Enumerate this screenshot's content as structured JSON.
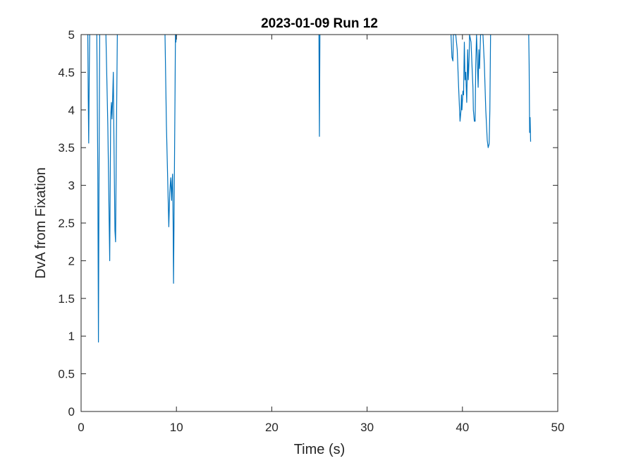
{
  "chart_data": {
    "type": "line",
    "title": "2023-01-09 Run 12",
    "xlabel": "Time (s)",
    "ylabel": "DvA from Fixation",
    "xlim": [
      0,
      50
    ],
    "ylim": [
      0,
      5
    ],
    "xticks": [
      0,
      10,
      20,
      30,
      40,
      50
    ],
    "yticks": [
      0,
      0.5,
      1,
      1.5,
      2,
      2.5,
      3,
      3.5,
      4,
      4.5,
      5
    ],
    "grid": false,
    "legend": "none",
    "line_color": "#0072BD",
    "series": [
      {
        "segments": [
          [
            [
              0.7,
              5.0
            ],
            [
              0.75,
              4.2
            ],
            [
              0.8,
              3.56
            ],
            [
              0.85,
              4.4
            ],
            [
              0.9,
              5.0
            ]
          ],
          [
            [
              1.65,
              5.0
            ],
            [
              1.75,
              3.2
            ],
            [
              1.82,
              0.92
            ],
            [
              1.87,
              2.8
            ],
            [
              1.95,
              5.0
            ]
          ],
          [
            [
              2.6,
              5.0
            ],
            [
              2.8,
              3.8
            ],
            [
              3.0,
              2.0
            ],
            [
              3.1,
              3.9
            ],
            [
              3.18,
              4.1
            ],
            [
              3.24,
              3.88
            ],
            [
              3.3,
              4.1
            ],
            [
              3.38,
              4.5
            ],
            [
              3.45,
              3.6
            ],
            [
              3.55,
              2.4
            ],
            [
              3.62,
              2.25
            ],
            [
              3.7,
              3.6
            ],
            [
              3.8,
              5.0
            ]
          ],
          [
            [
              8.8,
              5.0
            ],
            [
              8.95,
              3.8
            ],
            [
              9.1,
              3.0
            ],
            [
              9.2,
              2.45
            ],
            [
              9.3,
              2.9
            ],
            [
              9.4,
              3.1
            ],
            [
              9.5,
              2.8
            ],
            [
              9.55,
              3.05
            ],
            [
              9.6,
              3.15
            ],
            [
              9.65,
              2.5
            ],
            [
              9.7,
              1.7
            ],
            [
              9.78,
              3.0
            ],
            [
              9.85,
              4.2
            ],
            [
              9.9,
              5.0
            ],
            [
              9.95,
              4.9
            ],
            [
              10.0,
              5.0
            ]
          ],
          [
            [
              24.95,
              5.0
            ],
            [
              25.0,
              3.65
            ],
            [
              25.05,
              5.0
            ]
          ],
          [
            [
              38.8,
              5.0
            ],
            [
              38.9,
              4.7
            ],
            [
              39.0,
              4.65
            ],
            [
              39.05,
              5.0
            ],
            [
              39.3,
              5.0
            ],
            [
              39.45,
              4.8
            ],
            [
              39.6,
              4.3
            ],
            [
              39.75,
              3.85
            ],
            [
              39.85,
              4.0
            ],
            [
              39.9,
              4.2
            ],
            [
              39.95,
              4.0
            ],
            [
              40.05,
              4.25
            ],
            [
              40.12,
              4.2
            ],
            [
              40.2,
              4.9
            ],
            [
              40.27,
              4.4
            ],
            [
              40.35,
              4.5
            ],
            [
              40.45,
              4.1
            ],
            [
              40.55,
              4.8
            ],
            [
              40.62,
              4.4
            ],
            [
              40.7,
              4.7
            ],
            [
              40.75,
              5.0
            ],
            [
              40.9,
              4.9
            ],
            [
              41.0,
              4.6
            ],
            [
              41.1,
              4.3
            ],
            [
              41.15,
              4.0
            ],
            [
              41.25,
              3.85
            ],
            [
              41.33,
              3.85
            ],
            [
              41.4,
              4.6
            ],
            [
              41.48,
              5.0
            ],
            [
              41.55,
              4.7
            ],
            [
              41.65,
              4.3
            ],
            [
              41.72,
              4.8
            ],
            [
              41.8,
              4.55
            ],
            [
              41.9,
              5.0
            ],
            [
              42.15,
              5.0
            ],
            [
              42.3,
              4.6
            ],
            [
              42.45,
              4.0
            ],
            [
              42.6,
              3.6
            ],
            [
              42.7,
              3.5
            ],
            [
              42.8,
              3.55
            ],
            [
              42.88,
              4.0
            ],
            [
              42.95,
              5.0
            ]
          ],
          [
            [
              46.95,
              5.0
            ],
            [
              47.0,
              4.6
            ],
            [
              47.05,
              3.7
            ],
            [
              47.1,
              3.9
            ],
            [
              47.15,
              3.58
            ]
          ]
        ]
      }
    ]
  }
}
